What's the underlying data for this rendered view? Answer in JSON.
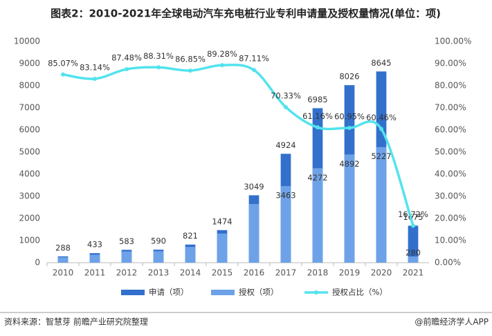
{
  "chart_data": {
    "type": "bar",
    "title": "图表2：2010-2021年全球电动汽车充电桩行业专利申请量及授权量情况(单位：项)",
    "categories": [
      "2010",
      "2011",
      "2012",
      "2013",
      "2014",
      "2015",
      "2016",
      "2017",
      "2018",
      "2019",
      "2020",
      "2021"
    ],
    "series": [
      {
        "name": "申请（项）",
        "type": "bar",
        "color": "#3270cc",
        "values": [
          288,
          433,
          583,
          590,
          821,
          1474,
          3049,
          4924,
          6985,
          8026,
          8645,
          1675
        ],
        "labelled": [
          0,
          1,
          2,
          3,
          4,
          5,
          6,
          7,
          8,
          9,
          10,
          11
        ]
      },
      {
        "name": "授权（项）",
        "type": "bar",
        "color": "#6ea2e8",
        "values": [
          245,
          360,
          510,
          521,
          713,
          1316,
          2656,
          3463,
          4272,
          4892,
          5227,
          280
        ],
        "labelled": [
          7,
          8,
          9,
          10,
          11
        ]
      },
      {
        "name": "授权占比（%）",
        "type": "line",
        "axis": "y2",
        "color": "#52e3ee",
        "values": [
          85.07,
          83.14,
          87.48,
          88.31,
          86.85,
          89.28,
          87.11,
          70.33,
          61.16,
          60.95,
          60.46,
          16.72
        ],
        "value_labels": [
          "85.07%",
          "83.14%",
          "87.48%",
          "88.31%",
          "86.85%",
          "89.28%",
          "87.11%",
          "70.33%",
          "61.16%",
          "60.95%",
          "60.46%",
          "16.72%"
        ]
      }
    ],
    "ylim": [
      0,
      10000
    ],
    "yticks": [
      0,
      1000,
      2000,
      3000,
      4000,
      5000,
      6000,
      7000,
      8000,
      9000,
      10000
    ],
    "y2lim": [
      0,
      100
    ],
    "y2ticks": [
      {
        "value": 0,
        "label": "0.00%"
      },
      {
        "value": 10,
        "label": "10.00%"
      },
      {
        "value": 20,
        "label": "20.00%"
      },
      {
        "value": 30,
        "label": "30.00%"
      },
      {
        "value": 40,
        "label": "40.00%"
      },
      {
        "value": 50,
        "label": "50.00%"
      },
      {
        "value": 60,
        "label": "60.00%"
      },
      {
        "value": 70,
        "label": "70.00%"
      },
      {
        "value": 80,
        "label": "80.00%"
      },
      {
        "value": 90,
        "label": "90.00%"
      },
      {
        "value": 100,
        "label": "100.00%"
      }
    ],
    "legend": "bottom"
  },
  "footer": {
    "source": "资料来源：智慧芽 前瞻产业研究院整理",
    "credit": "@前瞻经济学人APP"
  }
}
